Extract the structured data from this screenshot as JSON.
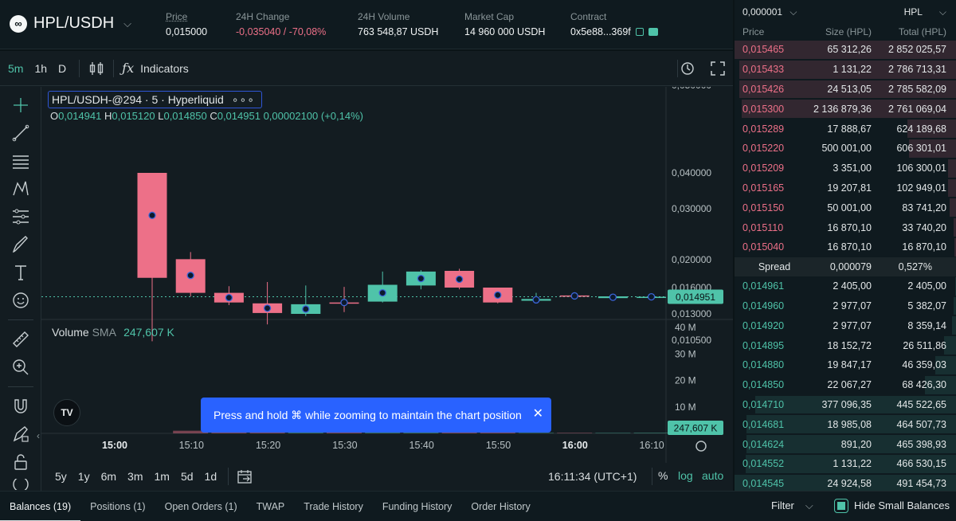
{
  "header": {
    "pair": "HPL/USDH",
    "price_label": "Price",
    "price": "0,015000",
    "change_label": "24H Change",
    "change": "-0,035040 / -70,08%",
    "volume_label": "24H Volume",
    "volume": "763 548,87 USDH",
    "mcap_label": "Market Cap",
    "mcap": "14 960 000 USDH",
    "contract_label": "Contract",
    "contract": "0x5e88...369f"
  },
  "toolbar": {
    "timeframes": [
      "5m",
      "1h",
      "D"
    ],
    "indicators_label": "Indicators"
  },
  "chart": {
    "legend_title": "HPL/USDH-@294 · 5 · Hyperliquid",
    "o_label": "O",
    "o": "0,014941",
    "h_label": "H",
    "h": "0,015120",
    "l_label": "L",
    "l": "0,014850",
    "c_label": "C",
    "c": "0,014951",
    "change": "0,00002100 (+0,14%)",
    "volume_title": "Volume",
    "sma_label": "SMA",
    "volume_sma": "247,607 K",
    "logo": "TV",
    "toast": "Press and hold ⌘ while zooming to maintain the chart position",
    "clock": "16:11:34 (UTC+1)",
    "ranges": [
      "5y",
      "1y",
      "6m",
      "3m",
      "1m",
      "5d",
      "1d"
    ],
    "pct_label": "%",
    "log_label": "log",
    "auto_label": "auto"
  },
  "chart_data": {
    "type": "candlestick",
    "x_ticks": [
      "15:00",
      "15:10",
      "15:20",
      "15:30",
      "15:40",
      "15:50",
      "16:00",
      "16:10"
    ],
    "price_ticks": [
      "0,040000",
      "0,030000",
      "0,020000",
      "0,016000",
      "0,013000",
      "0,010500"
    ],
    "volume_ticks": [
      "40 M",
      "30 M",
      "20 M",
      "10 M"
    ],
    "price_tags": [
      "0,014951"
    ],
    "volume_tags": [
      "247,607 K"
    ],
    "candles": [
      {
        "t": "15:05",
        "o": 0.04,
        "h": 0.04,
        "l": 0.0104,
        "c": 0.0174,
        "dir": "down"
      },
      {
        "t": "15:10",
        "o": 0.0201,
        "h": 0.0215,
        "l": 0.015,
        "c": 0.0154,
        "dir": "down"
      },
      {
        "t": "15:15",
        "o": 0.0154,
        "h": 0.0162,
        "l": 0.014,
        "c": 0.0143,
        "dir": "down"
      },
      {
        "t": "15:20",
        "o": 0.0142,
        "h": 0.0168,
        "l": 0.012,
        "c": 0.0131,
        "dir": "down"
      },
      {
        "t": "15:25",
        "o": 0.013,
        "h": 0.0163,
        "l": 0.0128,
        "c": 0.0141,
        "dir": "up"
      },
      {
        "t": "15:30",
        "o": 0.0143,
        "h": 0.0161,
        "l": 0.0132,
        "c": 0.0143,
        "dir": "down"
      },
      {
        "t": "15:35",
        "o": 0.0144,
        "h": 0.0183,
        "l": 0.0143,
        "c": 0.0164,
        "dir": "up"
      },
      {
        "t": "15:40",
        "o": 0.0163,
        "h": 0.0185,
        "l": 0.0158,
        "c": 0.0183,
        "dir": "up"
      },
      {
        "t": "15:45",
        "o": 0.0184,
        "h": 0.0187,
        "l": 0.0158,
        "c": 0.016,
        "dir": "down"
      },
      {
        "t": "15:50",
        "o": 0.016,
        "h": 0.016,
        "l": 0.0142,
        "c": 0.0143,
        "dir": "down"
      },
      {
        "t": "15:55",
        "o": 0.0145,
        "h": 0.0154,
        "l": 0.0144,
        "c": 0.0147,
        "dir": "up"
      },
      {
        "t": "16:00",
        "o": 0.0151,
        "h": 0.0152,
        "l": 0.0148,
        "c": 0.015,
        "dir": "down"
      },
      {
        "t": "16:05",
        "o": 0.0148,
        "h": 0.0151,
        "l": 0.0147,
        "c": 0.015,
        "dir": "up"
      },
      {
        "t": "16:10",
        "o": 0.014941,
        "h": 0.01512,
        "l": 0.01485,
        "c": 0.014951,
        "dir": "up"
      }
    ],
    "volumes_m": [
      0.0,
      1.0,
      0.7,
      0.5,
      0.6,
      0.4,
      0.5,
      0.4,
      0.4,
      0.3,
      0.2,
      0.2,
      0.2,
      0.25
    ]
  },
  "orderbook": {
    "tick_size": "0,000001",
    "asset": "HPL",
    "col_price": "Price",
    "col_size": "Size (HPL)",
    "col_total": "Total (HPL)",
    "asks": [
      {
        "price": "0,015465",
        "size": "65 312,26",
        "total": "2 852 025,57",
        "depth": 1.0
      },
      {
        "price": "0,015433",
        "size": "1 131,22",
        "total": "2 786 713,31",
        "depth": 0.977
      },
      {
        "price": "0,015426",
        "size": "24 513,05",
        "total": "2 785 582,09",
        "depth": 0.977
      },
      {
        "price": "0,015300",
        "size": "2 136 879,36",
        "total": "2 761 069,04",
        "depth": 0.968
      },
      {
        "price": "0,015289",
        "size": "17 888,67",
        "total": "624 189,68",
        "depth": 0.219
      },
      {
        "price": "0,015220",
        "size": "500 001,00",
        "total": "606 301,01",
        "depth": 0.213
      },
      {
        "price": "0,015209",
        "size": "3 351,00",
        "total": "106 300,01",
        "depth": 0.037
      },
      {
        "price": "0,015165",
        "size": "19 207,81",
        "total": "102 949,01",
        "depth": 0.036
      },
      {
        "price": "0,015150",
        "size": "50 001,00",
        "total": "83 741,20",
        "depth": 0.029
      },
      {
        "price": "0,015110",
        "size": "16 870,10",
        "total": "33 740,20",
        "depth": 0.012
      },
      {
        "price": "0,015040",
        "size": "16 870,10",
        "total": "16 870,10",
        "depth": 0.006
      }
    ],
    "spread_label": "Spread",
    "spread_value": "0,000079",
    "spread_pct": "0,527%",
    "bids": [
      {
        "price": "0,014961",
        "size": "2 405,00",
        "total": "2 405,00",
        "depth": 0.004
      },
      {
        "price": "0,014960",
        "size": "2 977,07",
        "total": "5 382,07",
        "depth": 0.011
      },
      {
        "price": "0,014920",
        "size": "2 977,07",
        "total": "8 359,14",
        "depth": 0.017
      },
      {
        "price": "0,014895",
        "size": "18 152,72",
        "total": "26 511,86",
        "depth": 0.054
      },
      {
        "price": "0,014880",
        "size": "19 847,17",
        "total": "46 359,03",
        "depth": 0.094
      },
      {
        "price": "0,014850",
        "size": "22 067,27",
        "total": "68 426,30",
        "depth": 0.139
      },
      {
        "price": "0,014710",
        "size": "377 096,35",
        "total": "445 522,65",
        "depth": 0.906
      },
      {
        "price": "0,014681",
        "size": "18 985,08",
        "total": "464 507,73",
        "depth": 0.945
      },
      {
        "price": "0,014624",
        "size": "891,20",
        "total": "465 398,93",
        "depth": 0.946
      },
      {
        "price": "0,014552",
        "size": "1 131,22",
        "total": "466 530,15",
        "depth": 0.949
      },
      {
        "price": "0,014545",
        "size": "24 924,58",
        "total": "491 454,73",
        "depth": 1.0
      }
    ]
  },
  "bottom": {
    "tabs": [
      "Balances (19)",
      "Positions (1)",
      "Open Orders (1)",
      "TWAP",
      "Trade History",
      "Funding History",
      "Order History"
    ],
    "filter_label": "Filter",
    "hide_small": "Hide Small Balances"
  },
  "colors": {
    "up": "#4fc3a9",
    "down": "#ed7088",
    "accent": "#2962ff"
  }
}
